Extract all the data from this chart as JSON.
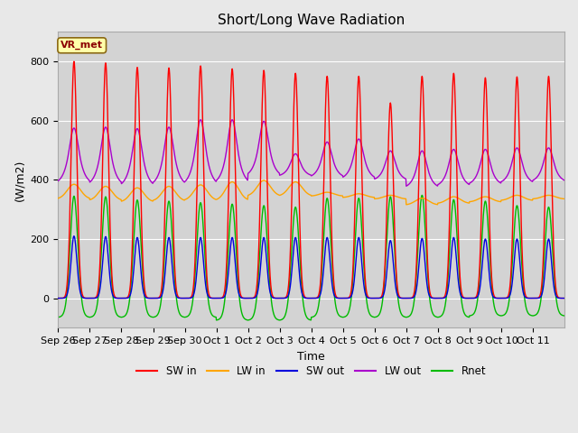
{
  "title": "Short/Long Wave Radiation",
  "xlabel": "Time",
  "ylabel": "(W/m2)",
  "ylim": [
    -100,
    900
  ],
  "xtick_labels": [
    "Sep 26",
    "Sep 27",
    "Sep 28",
    "Sep 29",
    "Sep 30",
    "Oct 1",
    "Oct 2",
    "Oct 3",
    "Oct 4",
    "Oct 5",
    "Oct 6",
    "Oct 7",
    "Oct 8",
    "Oct 9",
    "Oct 10",
    "Oct 11"
  ],
  "annotation": "VR_met",
  "series": {
    "SW_in": {
      "color": "#ff0000",
      "label": "SW in",
      "lw": 1.0
    },
    "LW_in": {
      "color": "#ffa500",
      "label": "LW in",
      "lw": 1.0
    },
    "SW_out": {
      "color": "#0000dd",
      "label": "SW out",
      "lw": 1.0
    },
    "LW_out": {
      "color": "#aa00cc",
      "label": "LW out",
      "lw": 1.0
    },
    "Rnet": {
      "color": "#00bb00",
      "label": "Rnet",
      "lw": 1.0
    }
  },
  "bg_color": "#e8e8e8",
  "plot_bg_color": "#d3d3d3",
  "grid_color": "#ffffff",
  "n_days": 16,
  "dt_hours": 0.25,
  "SW_in_peaks": [
    800,
    795,
    780,
    778,
    785,
    775,
    770,
    760,
    750,
    750,
    660,
    750,
    760,
    745,
    748,
    750
  ],
  "LW_in_base": [
    335,
    330,
    325,
    328,
    330,
    330,
    345,
    345,
    345,
    340,
    335,
    315,
    320,
    325,
    330,
    335
  ],
  "LW_in_peaks": [
    385,
    378,
    373,
    378,
    383,
    393,
    398,
    393,
    358,
    353,
    348,
    338,
    343,
    343,
    348,
    348
  ],
  "SW_out_peaks": [
    210,
    208,
    205,
    205,
    205,
    205,
    205,
    205,
    205,
    205,
    195,
    202,
    205,
    200,
    200,
    200
  ],
  "LW_out_base": [
    388,
    383,
    378,
    382,
    383,
    388,
    413,
    412,
    408,
    403,
    398,
    373,
    378,
    383,
    388,
    393
  ],
  "LW_out_peaks": [
    575,
    578,
    573,
    578,
    603,
    603,
    598,
    488,
    528,
    538,
    498,
    498,
    503,
    503,
    508,
    508
  ],
  "Rnet_peaks": [
    345,
    343,
    332,
    328,
    323,
    318,
    313,
    308,
    338,
    338,
    343,
    348,
    333,
    328,
    313,
    308
  ],
  "Rnet_night": [
    -65,
    -65,
    -65,
    -65,
    -65,
    -75,
    -75,
    -75,
    -65,
    -65,
    -65,
    -65,
    -65,
    -60,
    -60,
    -60
  ]
}
